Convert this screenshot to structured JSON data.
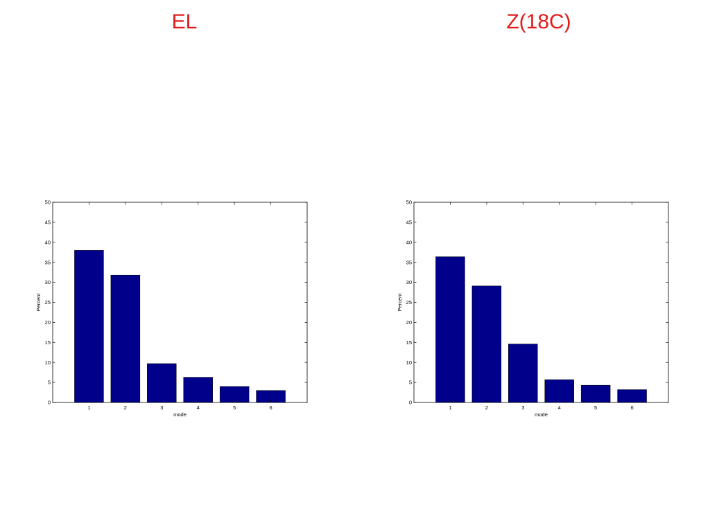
{
  "slide": {
    "titles": [
      "EL",
      "Z(18C)"
    ]
  },
  "colors": {
    "title": "#e31b1b",
    "bar": "#00008b",
    "axis": "#000000"
  },
  "chart_data": [
    {
      "type": "bar",
      "title": "EL",
      "xlabel": "mode",
      "ylabel": "Percent",
      "categories": [
        "1",
        "2",
        "3",
        "4",
        "5",
        "6"
      ],
      "values": [
        38,
        31.8,
        9.7,
        6.3,
        4,
        3
      ],
      "ylim": [
        0,
        50
      ],
      "yticks": [
        0,
        5,
        10,
        15,
        20,
        25,
        30,
        35,
        40,
        45,
        50
      ],
      "grid": false,
      "legend": "none",
      "bar_color": "#00008b"
    },
    {
      "type": "bar",
      "title": "Z(18C)",
      "xlabel": "mode",
      "ylabel": "Percent",
      "categories": [
        "1",
        "2",
        "3",
        "4",
        "5",
        "6"
      ],
      "values": [
        36.4,
        29.1,
        14.6,
        5.7,
        4.3,
        3.2
      ],
      "ylim": [
        0,
        50
      ],
      "yticks": [
        0,
        5,
        10,
        15,
        20,
        25,
        30,
        35,
        40,
        45,
        50
      ],
      "grid": false,
      "legend": "none",
      "bar_color": "#00008b"
    }
  ]
}
